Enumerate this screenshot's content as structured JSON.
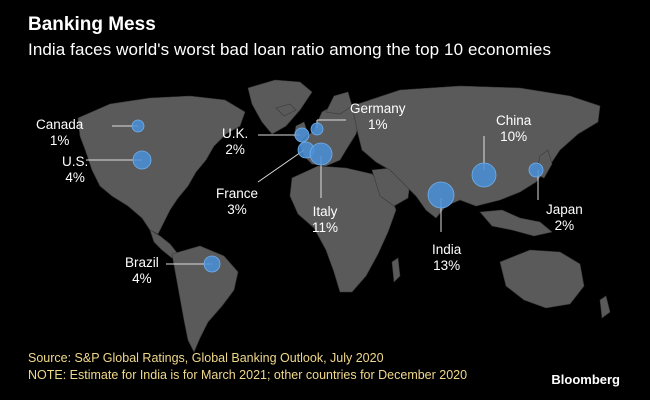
{
  "header": {
    "title": "Banking Mess",
    "subtitle": "India faces world's worst bad loan ratio among the top 10 economies"
  },
  "countries": [
    {
      "name": "Canada",
      "value": "1%"
    },
    {
      "name": "U.S.",
      "value": "4%"
    },
    {
      "name": "U.K.",
      "value": "2%"
    },
    {
      "name": "Germany",
      "value": "1%"
    },
    {
      "name": "France",
      "value": "3%"
    },
    {
      "name": "Italy",
      "value": "11%"
    },
    {
      "name": "Brazil",
      "value": "4%"
    },
    {
      "name": "India",
      "value": "13%"
    },
    {
      "name": "China",
      "value": "10%"
    },
    {
      "name": "Japan",
      "value": "2%"
    }
  ],
  "footer": {
    "source": "Source: S&P Global Ratings, Global Banking Outlook, July 2020",
    "note": "NOTE: Estimate for India is for March 2021; other countries for December 2020",
    "brand": "Bloomberg"
  },
  "colors": {
    "background": "#000000",
    "land": "#5a5a5a",
    "bubble": "#4a90d9",
    "source_text": "#f0d88a"
  }
}
